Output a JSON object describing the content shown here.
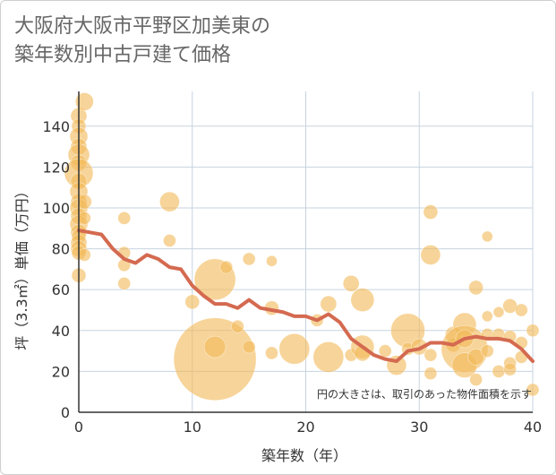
{
  "title": {
    "line1": "大阪府大阪市平野区加美東の",
    "line2": "築年数別中古戸建て価格"
  },
  "colors": {
    "bubble": "#f2b95a",
    "line": "#d46a50",
    "grid": "#c7d3df",
    "axis": "#333333"
  },
  "chart_data": {
    "type": "scatter",
    "title": "大阪府大阪市平野区加美東の築年数別中古戸建て価格",
    "xlabel": "築年数（年）",
    "ylabel": "坪（3.3㎡）単価（万円）",
    "note": "円の大きさは、取引のあった物件面積を示す",
    "xlim": [
      0,
      40
    ],
    "ylim": [
      0,
      157
    ],
    "xticks": [
      0,
      10,
      20,
      30,
      40
    ],
    "yticks": [
      0,
      20,
      40,
      60,
      80,
      100,
      120,
      140
    ],
    "bubbles": [
      {
        "x": 0,
        "y": 145,
        "s": 9
      },
      {
        "x": 0,
        "y": 140,
        "s": 8
      },
      {
        "x": 0,
        "y": 135,
        "s": 10
      },
      {
        "x": 0,
        "y": 130,
        "s": 9
      },
      {
        "x": 0,
        "y": 126,
        "s": 12
      },
      {
        "x": 0,
        "y": 122,
        "s": 9
      },
      {
        "x": 0,
        "y": 117,
        "s": 16
      },
      {
        "x": 0,
        "y": 113,
        "s": 9
      },
      {
        "x": 0,
        "y": 108,
        "s": 10
      },
      {
        "x": 0,
        "y": 103,
        "s": 9
      },
      {
        "x": 0,
        "y": 100,
        "s": 10
      },
      {
        "x": 0,
        "y": 96,
        "s": 9
      },
      {
        "x": 0,
        "y": 92,
        "s": 10
      },
      {
        "x": 0,
        "y": 88,
        "s": 9
      },
      {
        "x": 0,
        "y": 86,
        "s": 8
      },
      {
        "x": 0,
        "y": 83,
        "s": 9
      },
      {
        "x": 0,
        "y": 80,
        "s": 9
      },
      {
        "x": 0,
        "y": 78,
        "s": 8
      },
      {
        "x": 0,
        "y": 67,
        "s": 8
      },
      {
        "x": 0.5,
        "y": 152,
        "s": 10
      },
      {
        "x": 0.5,
        "y": 103,
        "s": 8
      },
      {
        "x": 0.5,
        "y": 95,
        "s": 7
      },
      {
        "x": 0.5,
        "y": 77,
        "s": 7
      },
      {
        "x": 4,
        "y": 95,
        "s": 7
      },
      {
        "x": 4,
        "y": 78,
        "s": 7
      },
      {
        "x": 4,
        "y": 72,
        "s": 7
      },
      {
        "x": 4,
        "y": 63,
        "s": 7
      },
      {
        "x": 8,
        "y": 103,
        "s": 11
      },
      {
        "x": 8,
        "y": 84,
        "s": 7
      },
      {
        "x": 10,
        "y": 54,
        "s": 8
      },
      {
        "x": 12,
        "y": 65,
        "s": 23
      },
      {
        "x": 12,
        "y": 26,
        "s": 46
      },
      {
        "x": 12,
        "y": 32,
        "s": 12
      },
      {
        "x": 13,
        "y": 71,
        "s": 7
      },
      {
        "x": 14,
        "y": 42,
        "s": 7
      },
      {
        "x": 15,
        "y": 75,
        "s": 7
      },
      {
        "x": 15,
        "y": 32,
        "s": 7
      },
      {
        "x": 17,
        "y": 74,
        "s": 6
      },
      {
        "x": 17,
        "y": 51,
        "s": 8
      },
      {
        "x": 17,
        "y": 29,
        "s": 7
      },
      {
        "x": 19,
        "y": 31,
        "s": 17
      },
      {
        "x": 21,
        "y": 45,
        "s": 7
      },
      {
        "x": 22,
        "y": 53,
        "s": 9
      },
      {
        "x": 22,
        "y": 27,
        "s": 17
      },
      {
        "x": 24,
        "y": 63,
        "s": 9
      },
      {
        "x": 24,
        "y": 28,
        "s": 7
      },
      {
        "x": 25,
        "y": 55,
        "s": 13
      },
      {
        "x": 25,
        "y": 32,
        "s": 13
      },
      {
        "x": 25,
        "y": 29,
        "s": 9
      },
      {
        "x": 27,
        "y": 30,
        "s": 7
      },
      {
        "x": 28,
        "y": 23,
        "s": 11
      },
      {
        "x": 29,
        "y": 40,
        "s": 19
      },
      {
        "x": 29,
        "y": 31,
        "s": 7
      },
      {
        "x": 30,
        "y": 32,
        "s": 9
      },
      {
        "x": 31,
        "y": 98,
        "s": 8
      },
      {
        "x": 31,
        "y": 77,
        "s": 11
      },
      {
        "x": 31,
        "y": 28,
        "s": 7
      },
      {
        "x": 31,
        "y": 19,
        "s": 7
      },
      {
        "x": 33,
        "y": 38,
        "s": 9
      },
      {
        "x": 33,
        "y": 33,
        "s": 8
      },
      {
        "x": 34,
        "y": 43,
        "s": 13
      },
      {
        "x": 34,
        "y": 31,
        "s": 26
      },
      {
        "x": 34,
        "y": 23,
        "s": 14
      },
      {
        "x": 34,
        "y": 36,
        "s": 10
      },
      {
        "x": 35,
        "y": 61,
        "s": 8
      },
      {
        "x": 35,
        "y": 27,
        "s": 9
      },
      {
        "x": 35,
        "y": 16,
        "s": 7
      },
      {
        "x": 36,
        "y": 86,
        "s": 6
      },
      {
        "x": 36,
        "y": 47,
        "s": 6
      },
      {
        "x": 36,
        "y": 38,
        "s": 7
      },
      {
        "x": 36,
        "y": 30,
        "s": 7
      },
      {
        "x": 37,
        "y": 49,
        "s": 6
      },
      {
        "x": 37,
        "y": 38,
        "s": 7
      },
      {
        "x": 37,
        "y": 20,
        "s": 7
      },
      {
        "x": 38,
        "y": 52,
        "s": 8
      },
      {
        "x": 38,
        "y": 37,
        "s": 7
      },
      {
        "x": 38,
        "y": 24,
        "s": 7
      },
      {
        "x": 38,
        "y": 21,
        "s": 7
      },
      {
        "x": 39,
        "y": 50,
        "s": 7
      },
      {
        "x": 39,
        "y": 34,
        "s": 7
      },
      {
        "x": 39,
        "y": 27,
        "s": 7
      },
      {
        "x": 40,
        "y": 40,
        "s": 7
      },
      {
        "x": 40,
        "y": 11,
        "s": 7
      }
    ],
    "trend": {
      "x": [
        0,
        1,
        2,
        3,
        4,
        5,
        6,
        7,
        8,
        9,
        10,
        11,
        12,
        13,
        14,
        15,
        16,
        17,
        18,
        19,
        20,
        21,
        22,
        23,
        24,
        25,
        26,
        27,
        28,
        29,
        30,
        31,
        32,
        33,
        34,
        35,
        36,
        37,
        38,
        39,
        40
      ],
      "y": [
        89,
        88,
        87,
        80,
        75,
        73,
        77,
        75,
        71,
        70,
        62,
        57,
        53,
        53,
        51,
        55,
        51,
        50,
        49,
        47,
        47,
        45,
        48,
        44,
        36,
        32,
        28,
        26,
        25,
        30,
        31,
        34,
        34,
        33,
        36,
        37,
        36,
        36,
        35,
        31,
        25
      ]
    }
  }
}
